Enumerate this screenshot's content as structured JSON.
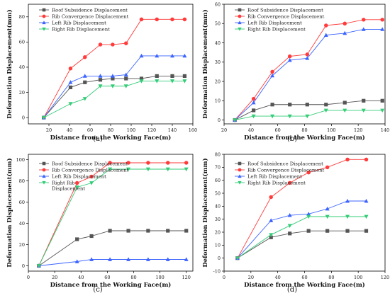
{
  "chart_data": [
    {
      "type": "line",
      "panel_label": "(a)",
      "xlabel": "Distance from the Working Face(m)",
      "ylabel": "Deformation Displacement(mm)",
      "xlim": [
        0,
        160
      ],
      "ylim": [
        -5,
        90
      ],
      "xticks": [
        20,
        40,
        60,
        80,
        100,
        120,
        140,
        160
      ],
      "yticks": [
        0,
        20,
        40,
        60,
        80
      ],
      "legend_position": "top-left",
      "series": [
        {
          "name": "Roof Subsidence Displacement",
          "color": "#555555",
          "marker": "square",
          "x": [
            15,
            41,
            55,
            70,
            82,
            95,
            110,
            125,
            140,
            152
          ],
          "y": [
            0,
            24,
            28,
            30,
            31,
            31,
            31,
            33,
            33,
            33
          ]
        },
        {
          "name": "Rib Convergence Displacement",
          "color": "#ff3b3b",
          "marker": "circle",
          "x": [
            15,
            41,
            55,
            70,
            82,
            95,
            110,
            125,
            140,
            152
          ],
          "y": [
            0,
            39,
            48,
            58,
            58,
            59,
            78,
            78,
            78,
            78
          ]
        },
        {
          "name": "Left Rib Displacement",
          "color": "#3b63ff",
          "marker": "triangle-up",
          "x": [
            15,
            41,
            55,
            70,
            82,
            95,
            110,
            125,
            140,
            152
          ],
          "y": [
            0,
            28,
            33,
            33,
            33,
            34,
            49,
            49,
            49,
            49
          ]
        },
        {
          "name": "Right Rib Displacement",
          "color": "#33cc77",
          "marker": "triangle-down",
          "x": [
            15,
            41,
            55,
            70,
            82,
            95,
            110,
            125,
            140,
            152
          ],
          "y": [
            0,
            11,
            15,
            25,
            25,
            25,
            29,
            29,
            29,
            29
          ]
        }
      ]
    },
    {
      "type": "line",
      "panel_label": "(b)",
      "xlabel": "Distance from the Working Face(m)",
      "ylabel": "Deformation Displacement(mm)",
      "xlim": [
        20,
        140
      ],
      "ylim": [
        -2,
        60
      ],
      "xticks": [
        20,
        40,
        60,
        80,
        100,
        120,
        140
      ],
      "yticks": [
        0,
        10,
        20,
        30,
        40,
        50,
        60
      ],
      "legend_position": "top-left",
      "series": [
        {
          "name": "Roof Subsidence Displacement",
          "color": "#555555",
          "marker": "square",
          "x": [
            28,
            42,
            56,
            69,
            82,
            96,
            110,
            124,
            138
          ],
          "y": [
            0,
            5,
            8,
            8,
            8,
            8,
            9,
            10,
            10
          ]
        },
        {
          "name": "Rib Convergence Displacement",
          "color": "#ff3b3b",
          "marker": "circle",
          "x": [
            28,
            42,
            56,
            69,
            82,
            96,
            110,
            124,
            138
          ],
          "y": [
            0,
            11,
            25,
            33,
            34,
            49,
            50,
            52,
            52
          ]
        },
        {
          "name": "Left Rib Displacement",
          "color": "#3b63ff",
          "marker": "triangle-up",
          "x": [
            28,
            42,
            56,
            69,
            82,
            96,
            110,
            124,
            138
          ],
          "y": [
            0,
            9,
            23,
            31,
            32,
            44,
            45,
            47,
            47
          ]
        },
        {
          "name": "Right Rib Displacement",
          "color": "#33cc77",
          "marker": "triangle-down",
          "x": [
            28,
            42,
            56,
            69,
            82,
            96,
            110,
            124,
            138
          ],
          "y": [
            0,
            2,
            2,
            2,
            2,
            5,
            5,
            5,
            5
          ]
        }
      ]
    },
    {
      "type": "line",
      "panel_label": "(c)",
      "xlabel": "Distance from the Working Face(m)",
      "ylabel": "Deformation Displacement(mm)",
      "xlim": [
        0,
        125
      ],
      "ylim": [
        -5,
        105
      ],
      "xticks": [
        0,
        20,
        40,
        60,
        80,
        100,
        120
      ],
      "yticks": [
        0,
        20,
        40,
        60,
        80,
        100
      ],
      "legend_position": "top-left",
      "series": [
        {
          "name": "Roof Subsidence Displacement",
          "color": "#555555",
          "marker": "square",
          "x": [
            8,
            37,
            48,
            62,
            76,
            91,
            106,
            120
          ],
          "y": [
            0,
            25,
            28,
            33,
            33,
            33,
            33,
            33
          ]
        },
        {
          "name": "Rib Convergence Displacement",
          "color": "#ff3b3b",
          "marker": "circle",
          "x": [
            8,
            37,
            48,
            62,
            76,
            91,
            106,
            120
          ],
          "y": [
            0,
            78,
            84,
            97,
            97,
            97,
            97,
            97
          ]
        },
        {
          "name": "Left Rib Displacement",
          "color": "#3b63ff",
          "marker": "triangle-up",
          "x": [
            8,
            37,
            48,
            62,
            76,
            91,
            106,
            120
          ],
          "y": [
            0,
            4,
            6,
            6,
            6,
            6,
            6,
            6
          ]
        },
        {
          "name": "Right Rib\nDisplacement",
          "color": "#33cc77",
          "marker": "triangle-down",
          "x": [
            8,
            37,
            48,
            62,
            76,
            91,
            106,
            120
          ],
          "y": [
            0,
            74,
            78,
            91,
            91,
            91,
            91,
            91
          ]
        }
      ]
    },
    {
      "type": "line",
      "panel_label": "(d)",
      "xlabel": "Distance from the Working Face(m)",
      "ylabel": "Deformation Displacement(mm)",
      "xlim": [
        0,
        120
      ],
      "ylim": [
        -10,
        80
      ],
      "xticks": [
        0,
        20,
        40,
        60,
        80,
        100,
        120
      ],
      "yticks": [
        -10,
        0,
        10,
        20,
        30,
        40,
        50,
        60,
        70,
        80
      ],
      "legend_position": "top-left",
      "series": [
        {
          "name": "Roof Subsidence Displacement",
          "color": "#555555",
          "marker": "square",
          "x": [
            10,
            35,
            49,
            63,
            77,
            92,
            106
          ],
          "y": [
            0,
            16,
            19,
            21,
            21,
            21,
            21
          ]
        },
        {
          "name": "Rib Convergence Displacement",
          "color": "#ff3b3b",
          "marker": "circle",
          "x": [
            10,
            35,
            49,
            63,
            77,
            92,
            106
          ],
          "y": [
            0,
            47,
            58,
            66,
            70,
            76,
            76
          ]
        },
        {
          "name": "Left Rib Displacement",
          "color": "#3b63ff",
          "marker": "triangle-up",
          "x": [
            10,
            35,
            49,
            63,
            77,
            92,
            106
          ],
          "y": [
            0,
            29,
            33,
            34,
            38,
            44,
            44
          ]
        },
        {
          "name": "Right Rib Displacement",
          "color": "#33cc77",
          "marker": "triangle-down",
          "x": [
            10,
            35,
            49,
            63,
            77,
            92,
            106
          ],
          "y": [
            0,
            18,
            25,
            32,
            32,
            32,
            32
          ]
        }
      ]
    }
  ]
}
